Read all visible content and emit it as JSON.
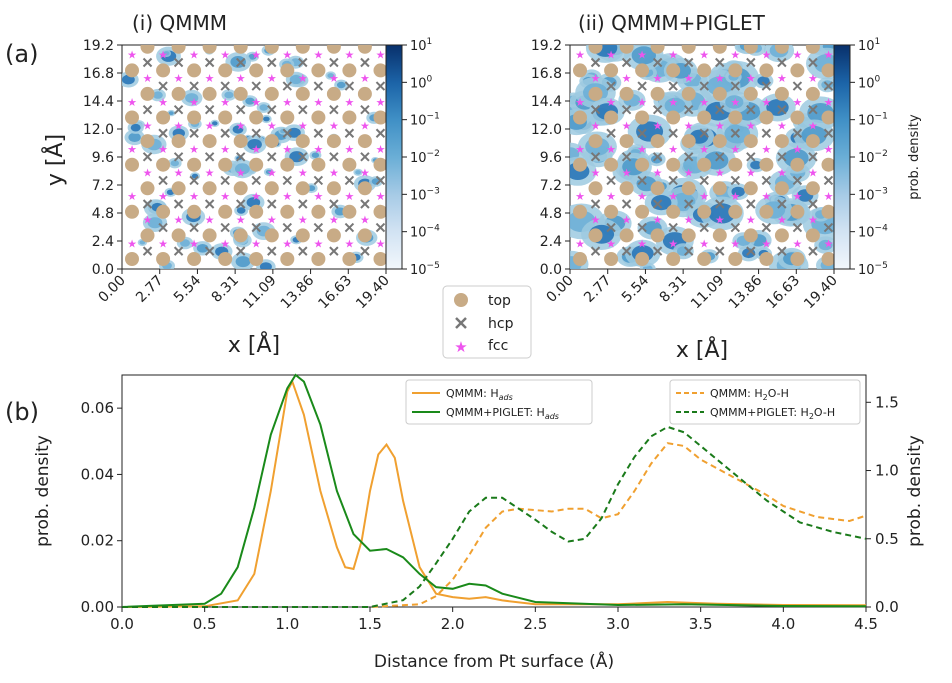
{
  "panel_labels": {
    "a": "(a)",
    "b": "(b)"
  },
  "titles": {
    "left": "(i) QMMM",
    "right": "(ii) QMMM+PIGLET"
  },
  "heatmap": {
    "xlabel": "x [Å]",
    "ylabel": "y [Å]",
    "xticks": [
      "0.00",
      "2.77",
      "5.54",
      "8.31",
      "11.09",
      "13.86",
      "16.63",
      "19.40"
    ],
    "yticks": [
      "0.0",
      "2.4",
      "4.8",
      "7.2",
      "9.6",
      "12.0",
      "14.4",
      "16.8",
      "19.2"
    ],
    "colorbar_label": "prob. density",
    "colorbar_ticks": [
      "10",
      "10",
      "10",
      "10",
      "10",
      "10",
      "10"
    ],
    "colorbar_exponents": [
      "1",
      "0",
      "−1",
      "−2",
      "−3",
      "−4",
      "−5"
    ],
    "colorbar_colors": [
      "#08306b",
      "#2171b5",
      "#4a98c9",
      "#6aaed6",
      "#94c4df",
      "#c6dbef",
      "#deebf7"
    ]
  },
  "legend_sites": [
    {
      "label": "top",
      "color": "#c8ab86",
      "marker": "circle"
    },
    {
      "label": "hcp",
      "color": "#777777",
      "marker": "x"
    },
    {
      "label": "fcc",
      "color": "#ee55ee",
      "marker": "star"
    }
  ],
  "chart_data": {
    "type": "line",
    "xlabel": "Distance from Pt surface (Å)",
    "ylabel_left": "prob. density",
    "ylabel_right": "prob. density",
    "xlim": [
      0.0,
      4.5
    ],
    "ylim_left": [
      0.0,
      0.07
    ],
    "ylim_right": [
      0.0,
      1.7
    ],
    "xticks": [
      "0.0",
      "0.5",
      "1.0",
      "1.5",
      "2.0",
      "2.5",
      "3.0",
      "3.5",
      "4.0",
      "4.5"
    ],
    "yticks_left": [
      "0.00",
      "0.02",
      "0.04",
      "0.06"
    ],
    "yticks_right": [
      "0.0",
      "0.5",
      "1.0",
      "1.5"
    ],
    "series": [
      {
        "name": "QMMM: H_ads",
        "name_main": "QMMM: H",
        "name_sub": "ads",
        "axis": "left",
        "color": "#f0a030",
        "dash": "solid",
        "points": [
          [
            0.0,
            0
          ],
          [
            0.5,
            0.0002
          ],
          [
            0.7,
            0.002
          ],
          [
            0.8,
            0.01
          ],
          [
            0.9,
            0.035
          ],
          [
            1.0,
            0.065
          ],
          [
            1.03,
            0.068
          ],
          [
            1.1,
            0.058
          ],
          [
            1.2,
            0.035
          ],
          [
            1.3,
            0.018
          ],
          [
            1.35,
            0.012
          ],
          [
            1.4,
            0.0115
          ],
          [
            1.45,
            0.02
          ],
          [
            1.5,
            0.035
          ],
          [
            1.55,
            0.046
          ],
          [
            1.6,
            0.049
          ],
          [
            1.65,
            0.045
          ],
          [
            1.7,
            0.032
          ],
          [
            1.8,
            0.012
          ],
          [
            1.9,
            0.004
          ],
          [
            2.0,
            0.003
          ],
          [
            2.1,
            0.0025
          ],
          [
            2.2,
            0.003
          ],
          [
            2.3,
            0.002
          ],
          [
            2.5,
            0.0008
          ],
          [
            3.0,
            0.0008
          ],
          [
            3.3,
            0.0015
          ],
          [
            3.6,
            0.001
          ],
          [
            4.0,
            0.0006
          ],
          [
            4.5,
            0.0005
          ]
        ]
      },
      {
        "name": "QMMM+PIGLET: H_ads",
        "name_main": "QMMM+PIGLET: H",
        "name_sub": "ads",
        "axis": "left",
        "color": "#1a8a1a",
        "dash": "solid",
        "points": [
          [
            0.0,
            0
          ],
          [
            0.5,
            0.001
          ],
          [
            0.6,
            0.004
          ],
          [
            0.7,
            0.012
          ],
          [
            0.8,
            0.03
          ],
          [
            0.9,
            0.052
          ],
          [
            1.0,
            0.066
          ],
          [
            1.05,
            0.07
          ],
          [
            1.1,
            0.068
          ],
          [
            1.2,
            0.055
          ],
          [
            1.3,
            0.035
          ],
          [
            1.4,
            0.022
          ],
          [
            1.5,
            0.017
          ],
          [
            1.6,
            0.0175
          ],
          [
            1.7,
            0.015
          ],
          [
            1.8,
            0.01
          ],
          [
            1.9,
            0.006
          ],
          [
            2.0,
            0.0055
          ],
          [
            2.1,
            0.007
          ],
          [
            2.2,
            0.0065
          ],
          [
            2.3,
            0.004
          ],
          [
            2.5,
            0.0015
          ],
          [
            3.0,
            0.0006
          ],
          [
            3.4,
            0.0008
          ],
          [
            4.0,
            0.0003
          ],
          [
            4.5,
            0.0002
          ]
        ]
      },
      {
        "name": "QMMM: H2O-H",
        "name_main": "QMMM: H",
        "name_sub": "2",
        "name_tail": "O-H",
        "axis": "right",
        "color": "#f0a030",
        "dash": "dashed",
        "points": [
          [
            0.0,
            0
          ],
          [
            1.5,
            0
          ],
          [
            1.8,
            0.02
          ],
          [
            1.9,
            0.08
          ],
          [
            2.0,
            0.2
          ],
          [
            2.1,
            0.38
          ],
          [
            2.2,
            0.58
          ],
          [
            2.3,
            0.7
          ],
          [
            2.4,
            0.72
          ],
          [
            2.5,
            0.71
          ],
          [
            2.6,
            0.7
          ],
          [
            2.7,
            0.72
          ],
          [
            2.8,
            0.72
          ],
          [
            2.9,
            0.65
          ],
          [
            3.0,
            0.68
          ],
          [
            3.1,
            0.85
          ],
          [
            3.2,
            1.05
          ],
          [
            3.3,
            1.2
          ],
          [
            3.4,
            1.18
          ],
          [
            3.5,
            1.08
          ],
          [
            3.7,
            0.95
          ],
          [
            3.9,
            0.82
          ],
          [
            4.0,
            0.74
          ],
          [
            4.2,
            0.66
          ],
          [
            4.4,
            0.63
          ],
          [
            4.5,
            0.67
          ]
        ]
      },
      {
        "name": "QMMM+PIGLET: H2O-H",
        "name_main": "QMMM+PIGLET: H",
        "name_sub": "2",
        "name_tail": "O-H",
        "axis": "right",
        "color": "#1a7a1a",
        "dash": "dashed",
        "points": [
          [
            0.0,
            0
          ],
          [
            1.5,
            0
          ],
          [
            1.7,
            0.05
          ],
          [
            1.8,
            0.15
          ],
          [
            1.9,
            0.32
          ],
          [
            2.0,
            0.5
          ],
          [
            2.1,
            0.7
          ],
          [
            2.2,
            0.8
          ],
          [
            2.3,
            0.8
          ],
          [
            2.4,
            0.72
          ],
          [
            2.5,
            0.64
          ],
          [
            2.6,
            0.55
          ],
          [
            2.7,
            0.48
          ],
          [
            2.8,
            0.5
          ],
          [
            2.9,
            0.65
          ],
          [
            3.0,
            0.9
          ],
          [
            3.1,
            1.1
          ],
          [
            3.2,
            1.25
          ],
          [
            3.3,
            1.32
          ],
          [
            3.4,
            1.28
          ],
          [
            3.5,
            1.18
          ],
          [
            3.7,
            0.98
          ],
          [
            3.9,
            0.78
          ],
          [
            4.1,
            0.62
          ],
          [
            4.3,
            0.55
          ],
          [
            4.5,
            0.5
          ]
        ]
      }
    ]
  }
}
